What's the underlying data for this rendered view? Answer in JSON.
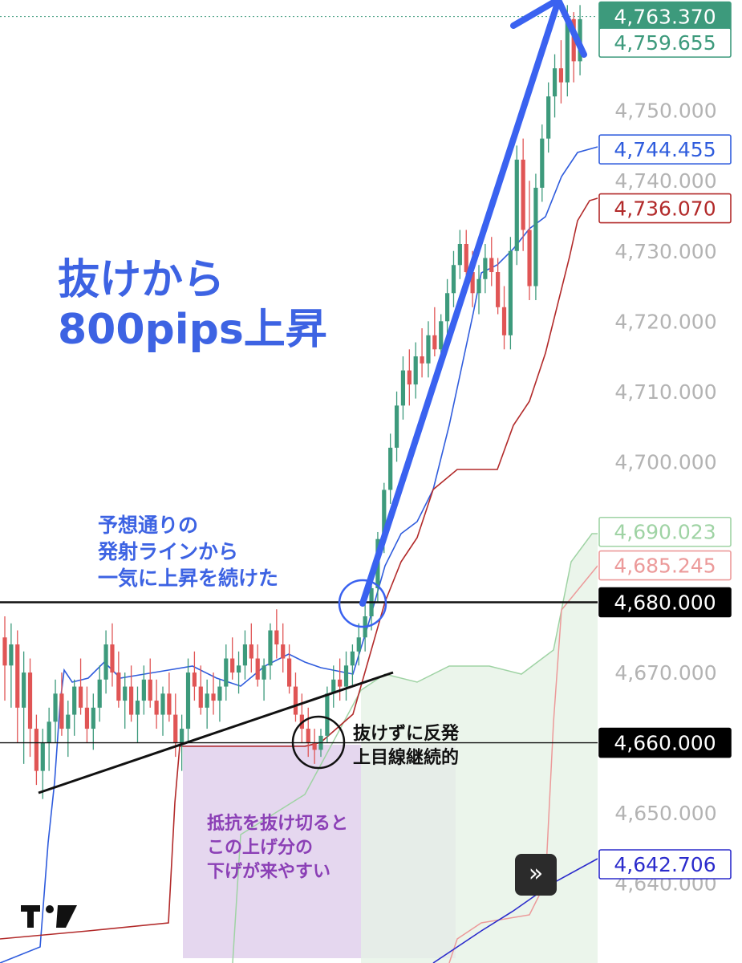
{
  "chart_data": {
    "type": "candlestick",
    "y_axis": {
      "range": [
        4635.0,
        4765.0
      ],
      "ticks": [
        "4,750.000",
        "4,740.000",
        "4,730.000",
        "4,720.000",
        "4,710.000",
        "4,700.000",
        "4,670.000",
        "4,650.000",
        "4,640.000"
      ],
      "tick_values": [
        4750,
        4740,
        4730,
        4720,
        4710,
        4700,
        4670,
        4650,
        4640
      ],
      "grid": false
    },
    "price_labels": [
      {
        "text": "4,763.370",
        "value": 4763.37,
        "style": "filled",
        "color": "#3d9a7c"
      },
      {
        "text": "4,759.655",
        "value": 4759.655,
        "style": "outline",
        "color": "#3d9a7c"
      },
      {
        "text": "4,744.455",
        "value": 4744.455,
        "style": "outline",
        "color": "#2f5cdd"
      },
      {
        "text": "4,736.070",
        "value": 4736.07,
        "style": "outline",
        "color": "#b22a2a"
      },
      {
        "text": "4,690.023",
        "value": 4690.023,
        "style": "outline",
        "color": "#9fd3a4"
      },
      {
        "text": "4,685.245",
        "value": 4685.245,
        "style": "outline",
        "color": "#ec9a9a"
      },
      {
        "text": "4,680.000",
        "value": 4680.0,
        "style": "filled",
        "color": "#000000"
      },
      {
        "text": "4,660.000",
        "value": 4660.0,
        "style": "filled",
        "color": "#000000"
      },
      {
        "text": "4,642.706",
        "value": 4642.706,
        "style": "outline",
        "color": "#2b2bcc"
      }
    ],
    "horizontal_lines": [
      4680.0,
      4660.0
    ],
    "current_price_line": 4763.37,
    "candles": [
      [
        4675,
        4678,
        4666,
        4671
      ],
      [
        4671,
        4677,
        4665,
        4674
      ],
      [
        4674,
        4676,
        4660,
        4665
      ],
      [
        4665,
        4673,
        4657,
        4670
      ],
      [
        4670,
        4672,
        4658,
        4662
      ],
      [
        4662,
        4664,
        4654,
        4656
      ],
      [
        4656,
        4662,
        4652,
        4660
      ],
      [
        4660,
        4665,
        4656,
        4663
      ],
      [
        4663,
        4669,
        4660,
        4667
      ],
      [
        4667,
        4670,
        4661,
        4662
      ],
      [
        4662,
        4666,
        4658,
        4664
      ],
      [
        4664,
        4669,
        4661,
        4668
      ],
      [
        4668,
        4672,
        4664,
        4665
      ],
      [
        4665,
        4668,
        4660,
        4662
      ],
      [
        4662,
        4667,
        4659,
        4665
      ],
      [
        4665,
        4671,
        4663,
        4669
      ],
      [
        4669,
        4676,
        4667,
        4674
      ],
      [
        4674,
        4677,
        4668,
        4670
      ],
      [
        4670,
        4673,
        4665,
        4666
      ],
      [
        4666,
        4670,
        4662,
        4668
      ],
      [
        4668,
        4671,
        4663,
        4664
      ],
      [
        4664,
        4668,
        4660,
        4666
      ],
      [
        4666,
        4671,
        4664,
        4669
      ],
      [
        4669,
        4672,
        4665,
        4666
      ],
      [
        4666,
        4669,
        4662,
        4664
      ],
      [
        4664,
        4668,
        4661,
        4667
      ],
      [
        4667,
        4670,
        4663,
        4664
      ],
      [
        4664,
        4667,
        4658,
        4660
      ],
      [
        4660,
        4664,
        4656,
        4662
      ],
      [
        4662,
        4672,
        4660,
        4670
      ],
      [
        4670,
        4673,
        4666,
        4668
      ],
      [
        4668,
        4671,
        4664,
        4665
      ],
      [
        4665,
        4669,
        4662,
        4667
      ],
      [
        4667,
        4670,
        4664,
        4666
      ],
      [
        4666,
        4669,
        4663,
        4668
      ],
      [
        4668,
        4674,
        4666,
        4672
      ],
      [
        4672,
        4675,
        4669,
        4670
      ],
      [
        4670,
        4673,
        4667,
        4671
      ],
      [
        4671,
        4676,
        4669,
        4674
      ],
      [
        4674,
        4677,
        4670,
        4672
      ],
      [
        4672,
        4674,
        4668,
        4669
      ],
      [
        4669,
        4672,
        4666,
        4671
      ],
      [
        4671,
        4677,
        4669,
        4676
      ],
      [
        4676,
        4679,
        4672,
        4674
      ],
      [
        4674,
        4677,
        4670,
        4672
      ],
      [
        4672,
        4674,
        4667,
        4668
      ],
      [
        4668,
        4670,
        4663,
        4664
      ],
      [
        4664,
        4667,
        4660,
        4662
      ],
      [
        4662,
        4665,
        4658,
        4660
      ],
      [
        4660,
        4662,
        4657,
        4659
      ],
      [
        4659,
        4662,
        4658,
        4661
      ],
      [
        4661,
        4668,
        4660,
        4667
      ],
      [
        4667,
        4671,
        4665,
        4669
      ],
      [
        4669,
        4672,
        4666,
        4668
      ],
      [
        4668,
        4673,
        4666,
        4671
      ],
      [
        4671,
        4674,
        4668,
        4673
      ],
      [
        4673,
        4677,
        4671,
        4675
      ],
      [
        4675,
        4680,
        4673,
        4678
      ],
      [
        4678,
        4683,
        4676,
        4682
      ],
      [
        4682,
        4690,
        4680,
        4689
      ],
      [
        4689,
        4697,
        4687,
        4696
      ],
      [
        4696,
        4704,
        4694,
        4702
      ],
      [
        4702,
        4710,
        4700,
        4708
      ],
      [
        4708,
        4715,
        4706,
        4713
      ],
      [
        4713,
        4716,
        4708,
        4711
      ],
      [
        4711,
        4717,
        4709,
        4715
      ],
      [
        4715,
        4719,
        4712,
        4714
      ],
      [
        4714,
        4720,
        4712,
        4718
      ],
      [
        4718,
        4722,
        4715,
        4716
      ],
      [
        4716,
        4721,
        4714,
        4720
      ],
      [
        4720,
        4726,
        4718,
        4724
      ],
      [
        4724,
        4730,
        4722,
        4728
      ],
      [
        4728,
        4733,
        4726,
        4731
      ],
      [
        4731,
        4733,
        4725,
        4727
      ],
      [
        4727,
        4730,
        4722,
        4724
      ],
      [
        4724,
        4728,
        4721,
        4726
      ],
      [
        4726,
        4731,
        4724,
        4729
      ],
      [
        4729,
        4732,
        4725,
        4727
      ],
      [
        4727,
        4729,
        4721,
        4722
      ],
      [
        4722,
        4725,
        4716,
        4718
      ],
      [
        4718,
        4732,
        4716,
        4730
      ],
      [
        4730,
        4745,
        4728,
        4743
      ],
      [
        4743,
        4746,
        4730,
        4733
      ],
      [
        4733,
        4740,
        4723,
        4725
      ],
      [
        4725,
        4741,
        4723,
        4739
      ],
      [
        4739,
        4748,
        4737,
        4746
      ],
      [
        4746,
        4754,
        4744,
        4752
      ],
      [
        4752,
        4758,
        4749,
        4756
      ],
      [
        4756,
        4760,
        4751,
        4754
      ],
      [
        4754,
        4765,
        4752,
        4763
      ],
      [
        4763,
        4764,
        4754,
        4757
      ],
      [
        4757,
        4765,
        4755,
        4763
      ]
    ]
  },
  "annotations": {
    "big": "抜けから\n800pips上昇",
    "breakout": "予想通りの\n発射ラインから\n一気に上昇を続けた",
    "rebound": "抜けずに反発\n上目線継続的",
    "resistance": "抵抗を抜け切ると\nこの上げ分の\n下げが来やすい"
  },
  "controls": {
    "scroll_to_latest": "»",
    "logo": "TV"
  },
  "colors": {
    "bull": "#3d9a7c",
    "bear": "#e05555",
    "arrow": "#3a62f0",
    "blue_line": "#2f5cdd",
    "red_line": "#b22a2a",
    "cloud_green": "#e6f3e6",
    "cloud_green_edge": "#9fd3a4",
    "cloud_red_edge": "#ec9a9a",
    "purple_box": "#dcc9ea",
    "annotation_blue": "#3d63e3",
    "annotation_purple": "#8b3fb6"
  }
}
